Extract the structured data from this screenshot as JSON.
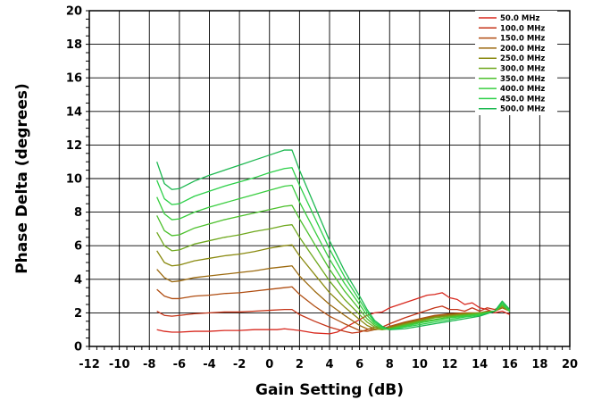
{
  "chart_data": {
    "type": "line",
    "title": "",
    "xlabel": "Gain Setting (dB)",
    "ylabel": "Phase Delta (degrees)",
    "xlim": [
      -12,
      20
    ],
    "ylim": [
      0,
      20
    ],
    "x_ticks": [
      -12,
      -10,
      -8,
      -6,
      -4,
      -2,
      0,
      2,
      4,
      6,
      8,
      10,
      12,
      14,
      16,
      18,
      20
    ],
    "y_ticks": [
      0,
      2,
      4,
      6,
      8,
      10,
      12,
      14,
      16,
      18,
      20
    ],
    "grid": true,
    "legend_position": "top-right",
    "series": [
      {
        "name": "50.0 MHz",
        "color": "#d8281e",
        "points": [
          [
            -7.5,
            1.0
          ],
          [
            -7,
            0.9
          ],
          [
            -6.5,
            0.85
          ],
          [
            -6,
            0.85
          ],
          [
            -5,
            0.9
          ],
          [
            -4,
            0.9
          ],
          [
            -3,
            0.95
          ],
          [
            -2,
            0.95
          ],
          [
            -1,
            1.0
          ],
          [
            0,
            1.0
          ],
          [
            0.5,
            1.0
          ],
          [
            1,
            1.05
          ],
          [
            2,
            0.95
          ],
          [
            3,
            0.8
          ],
          [
            4,
            0.75
          ],
          [
            4.5,
            0.85
          ],
          [
            5,
            1.1
          ],
          [
            5.5,
            1.35
          ],
          [
            6,
            1.6
          ],
          [
            6.5,
            1.85
          ],
          [
            7,
            2.0
          ],
          [
            7.5,
            2.05
          ],
          [
            8,
            2.3
          ],
          [
            9,
            2.6
          ],
          [
            10,
            2.9
          ],
          [
            10.5,
            3.05
          ],
          [
            11,
            3.1
          ],
          [
            11.5,
            3.2
          ],
          [
            12,
            2.9
          ],
          [
            12.5,
            2.8
          ],
          [
            13,
            2.5
          ],
          [
            13.5,
            2.6
          ],
          [
            14,
            2.3
          ],
          [
            14.5,
            2.2
          ],
          [
            15,
            2.0
          ],
          [
            15.5,
            2.1
          ],
          [
            16,
            1.9
          ]
        ]
      },
      {
        "name": "100.0 MHz",
        "color": "#c43418",
        "points": [
          [
            -7.5,
            2.1
          ],
          [
            -7,
            1.85
          ],
          [
            -6.5,
            1.8
          ],
          [
            -6,
            1.85
          ],
          [
            -5,
            1.95
          ],
          [
            -4,
            2.0
          ],
          [
            -3,
            2.05
          ],
          [
            -2,
            2.05
          ],
          [
            -1,
            2.1
          ],
          [
            0,
            2.15
          ],
          [
            1,
            2.2
          ],
          [
            1.5,
            2.2
          ],
          [
            2,
            1.9
          ],
          [
            3,
            1.5
          ],
          [
            4,
            1.15
          ],
          [
            5,
            0.9
          ],
          [
            5.5,
            0.8
          ],
          [
            6,
            0.85
          ],
          [
            6.5,
            1.0
          ],
          [
            7,
            1.15
          ],
          [
            7.5,
            1.15
          ],
          [
            8,
            1.35
          ],
          [
            9,
            1.7
          ],
          [
            10,
            2.0
          ],
          [
            11,
            2.3
          ],
          [
            11.5,
            2.4
          ],
          [
            12,
            2.2
          ],
          [
            12.5,
            2.2
          ],
          [
            13,
            2.1
          ],
          [
            13.5,
            2.3
          ],
          [
            14,
            2.1
          ],
          [
            14.5,
            2.3
          ],
          [
            15,
            2.2
          ],
          [
            15.5,
            2.4
          ],
          [
            16,
            2.2
          ]
        ]
      },
      {
        "name": "150.0 MHz",
        "color": "#b04e12",
        "points": [
          [
            -7.5,
            3.4
          ],
          [
            -7,
            3.0
          ],
          [
            -6.5,
            2.85
          ],
          [
            -6,
            2.85
          ],
          [
            -5,
            3.0
          ],
          [
            -4,
            3.05
          ],
          [
            -3,
            3.15
          ],
          [
            -2,
            3.2
          ],
          [
            -1,
            3.3
          ],
          [
            0,
            3.4
          ],
          [
            1,
            3.5
          ],
          [
            1.5,
            3.55
          ],
          [
            2,
            3.1
          ],
          [
            3,
            2.4
          ],
          [
            4,
            1.8
          ],
          [
            5,
            1.35
          ],
          [
            6,
            0.95
          ],
          [
            6.5,
            0.9
          ],
          [
            7,
            1.0
          ],
          [
            7.5,
            1.05
          ],
          [
            8,
            1.2
          ],
          [
            9,
            1.45
          ],
          [
            10,
            1.65
          ],
          [
            11,
            1.85
          ],
          [
            12,
            1.95
          ],
          [
            13,
            2.0
          ],
          [
            14,
            2.0
          ],
          [
            14.5,
            2.1
          ],
          [
            15,
            2.1
          ],
          [
            15.5,
            2.3
          ],
          [
            16,
            2.2
          ]
        ]
      },
      {
        "name": "200.0 MHz",
        "color": "#9c6a10",
        "points": [
          [
            -7.5,
            4.6
          ],
          [
            -7,
            4.1
          ],
          [
            -6.5,
            3.85
          ],
          [
            -6,
            3.9
          ],
          [
            -5,
            4.1
          ],
          [
            -4,
            4.2
          ],
          [
            -3,
            4.3
          ],
          [
            -2,
            4.4
          ],
          [
            -1,
            4.5
          ],
          [
            0,
            4.65
          ],
          [
            1,
            4.75
          ],
          [
            1.5,
            4.8
          ],
          [
            2,
            4.2
          ],
          [
            3,
            3.3
          ],
          [
            4,
            2.5
          ],
          [
            5,
            1.85
          ],
          [
            6,
            1.25
          ],
          [
            6.5,
            1.05
          ],
          [
            7,
            1.0
          ],
          [
            7.5,
            1.05
          ],
          [
            8,
            1.15
          ],
          [
            9,
            1.4
          ],
          [
            10,
            1.6
          ],
          [
            11,
            1.8
          ],
          [
            12,
            1.9
          ],
          [
            13,
            1.95
          ],
          [
            14,
            2.0
          ],
          [
            15,
            2.1
          ],
          [
            15.5,
            2.3
          ],
          [
            16,
            2.1
          ]
        ]
      },
      {
        "name": "250.0 MHz",
        "color": "#8a8a10",
        "points": [
          [
            -7.5,
            5.7
          ],
          [
            -7,
            5.0
          ],
          [
            -6.5,
            4.8
          ],
          [
            -6,
            4.85
          ],
          [
            -5,
            5.1
          ],
          [
            -4,
            5.25
          ],
          [
            -3,
            5.4
          ],
          [
            -2,
            5.5
          ],
          [
            -1,
            5.65
          ],
          [
            0,
            5.85
          ],
          [
            1,
            6.0
          ],
          [
            1.5,
            6.05
          ],
          [
            2,
            5.4
          ],
          [
            3,
            4.3
          ],
          [
            4,
            3.2
          ],
          [
            5,
            2.35
          ],
          [
            6,
            1.6
          ],
          [
            6.5,
            1.25
          ],
          [
            7,
            1.05
          ],
          [
            7.5,
            1.0
          ],
          [
            8,
            1.1
          ],
          [
            9,
            1.35
          ],
          [
            10,
            1.55
          ],
          [
            11,
            1.75
          ],
          [
            12,
            1.85
          ],
          [
            13,
            1.95
          ],
          [
            14,
            2.0
          ],
          [
            15,
            2.1
          ],
          [
            15.5,
            2.4
          ],
          [
            16,
            2.1
          ]
        ]
      },
      {
        "name": "300.0 MHz",
        "color": "#6fa81e",
        "points": [
          [
            -7.5,
            6.8
          ],
          [
            -7,
            6.0
          ],
          [
            -6.5,
            5.7
          ],
          [
            -6,
            5.75
          ],
          [
            -5,
            6.1
          ],
          [
            -4,
            6.3
          ],
          [
            -3,
            6.5
          ],
          [
            -2,
            6.65
          ],
          [
            -1,
            6.85
          ],
          [
            0,
            7.0
          ],
          [
            1,
            7.2
          ],
          [
            1.5,
            7.25
          ],
          [
            2,
            6.5
          ],
          [
            3,
            5.2
          ],
          [
            4,
            3.9
          ],
          [
            5,
            2.8
          ],
          [
            6,
            1.9
          ],
          [
            6.5,
            1.45
          ],
          [
            7,
            1.15
          ],
          [
            7.5,
            1.0
          ],
          [
            8,
            1.05
          ],
          [
            9,
            1.3
          ],
          [
            10,
            1.5
          ],
          [
            11,
            1.7
          ],
          [
            12,
            1.8
          ],
          [
            13,
            1.9
          ],
          [
            14,
            2.0
          ],
          [
            15,
            2.1
          ],
          [
            15.5,
            2.4
          ],
          [
            16,
            2.1
          ]
        ]
      },
      {
        "name": "350.0 MHz",
        "color": "#4cc02c",
        "points": [
          [
            -7.5,
            7.8
          ],
          [
            -7,
            6.9
          ],
          [
            -6.5,
            6.6
          ],
          [
            -6,
            6.65
          ],
          [
            -5,
            7.05
          ],
          [
            -4,
            7.3
          ],
          [
            -3,
            7.55
          ],
          [
            -2,
            7.75
          ],
          [
            -1,
            7.95
          ],
          [
            0,
            8.15
          ],
          [
            1,
            8.35
          ],
          [
            1.5,
            8.4
          ],
          [
            2,
            7.6
          ],
          [
            3,
            6.1
          ],
          [
            4,
            4.6
          ],
          [
            5,
            3.3
          ],
          [
            6,
            2.2
          ],
          [
            6.5,
            1.65
          ],
          [
            7,
            1.25
          ],
          [
            7.5,
            1.05
          ],
          [
            8,
            1.05
          ],
          [
            9,
            1.25
          ],
          [
            10,
            1.45
          ],
          [
            11,
            1.6
          ],
          [
            12,
            1.75
          ],
          [
            13,
            1.85
          ],
          [
            14,
            1.95
          ],
          [
            15,
            2.1
          ],
          [
            15.5,
            2.5
          ],
          [
            16,
            2.1
          ]
        ]
      },
      {
        "name": "400.0 MHz",
        "color": "#3ace40",
        "points": [
          [
            -7.5,
            8.9
          ],
          [
            -7,
            7.9
          ],
          [
            -6.5,
            7.55
          ],
          [
            -6,
            7.6
          ],
          [
            -5,
            8.0
          ],
          [
            -4,
            8.3
          ],
          [
            -3,
            8.55
          ],
          [
            -2,
            8.8
          ],
          [
            -1,
            9.05
          ],
          [
            0,
            9.3
          ],
          [
            1,
            9.55
          ],
          [
            1.5,
            9.6
          ],
          [
            2,
            8.6
          ],
          [
            3,
            6.9
          ],
          [
            4,
            5.2
          ],
          [
            5,
            3.75
          ],
          [
            6,
            2.5
          ],
          [
            6.5,
            1.85
          ],
          [
            7,
            1.35
          ],
          [
            7.5,
            1.1
          ],
          [
            8,
            1.0
          ],
          [
            9,
            1.2
          ],
          [
            10,
            1.4
          ],
          [
            11,
            1.55
          ],
          [
            12,
            1.7
          ],
          [
            13,
            1.8
          ],
          [
            14,
            1.9
          ],
          [
            15,
            2.1
          ],
          [
            15.5,
            2.5
          ],
          [
            16,
            2.1
          ]
        ]
      },
      {
        "name": "450.0 MHz",
        "color": "#2cd048",
        "points": [
          [
            -7.5,
            9.9
          ],
          [
            -7,
            8.8
          ],
          [
            -6.5,
            8.45
          ],
          [
            -6,
            8.5
          ],
          [
            -5,
            8.95
          ],
          [
            -4,
            9.25
          ],
          [
            -3,
            9.55
          ],
          [
            -2,
            9.8
          ],
          [
            -1,
            10.05
          ],
          [
            0,
            10.35
          ],
          [
            1,
            10.6
          ],
          [
            1.5,
            10.65
          ],
          [
            2,
            9.6
          ],
          [
            3,
            7.7
          ],
          [
            4,
            5.8
          ],
          [
            5,
            4.15
          ],
          [
            6,
            2.75
          ],
          [
            6.5,
            2.05
          ],
          [
            7,
            1.45
          ],
          [
            7.5,
            1.15
          ],
          [
            8,
            1.0
          ],
          [
            9,
            1.15
          ],
          [
            10,
            1.3
          ],
          [
            11,
            1.45
          ],
          [
            12,
            1.6
          ],
          [
            13,
            1.75
          ],
          [
            14,
            1.85
          ],
          [
            15,
            2.1
          ],
          [
            15.5,
            2.6
          ],
          [
            16,
            2.1
          ]
        ]
      },
      {
        "name": "500.0 MHz",
        "color": "#1cb850",
        "points": [
          [
            -7.5,
            11.0
          ],
          [
            -7,
            9.7
          ],
          [
            -6.5,
            9.35
          ],
          [
            -6,
            9.4
          ],
          [
            -5,
            9.85
          ],
          [
            -4,
            10.2
          ],
          [
            -3,
            10.5
          ],
          [
            -2,
            10.8
          ],
          [
            -1,
            11.1
          ],
          [
            0,
            11.4
          ],
          [
            1,
            11.7
          ],
          [
            1.5,
            11.7
          ],
          [
            2,
            10.5
          ],
          [
            3,
            8.4
          ],
          [
            4,
            6.3
          ],
          [
            5,
            4.5
          ],
          [
            6,
            3.0
          ],
          [
            6.5,
            2.2
          ],
          [
            7,
            1.55
          ],
          [
            7.5,
            1.2
          ],
          [
            8,
            1.0
          ],
          [
            9,
            1.05
          ],
          [
            10,
            1.2
          ],
          [
            11,
            1.35
          ],
          [
            12,
            1.5
          ],
          [
            13,
            1.65
          ],
          [
            14,
            1.8
          ],
          [
            15,
            2.1
          ],
          [
            15.5,
            2.7
          ],
          [
            16,
            2.2
          ]
        ]
      }
    ]
  }
}
